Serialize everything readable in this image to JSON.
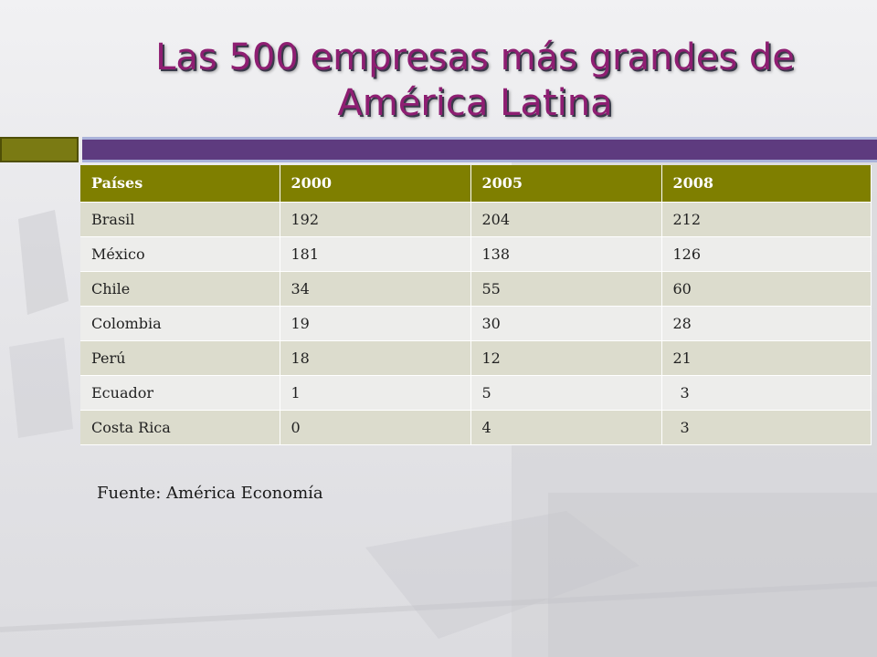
{
  "slide": {
    "title_line1": "Las 500 empresas más grandes de",
    "title_line2": "América Latina",
    "title_color": "#8e1e72",
    "accent_olive": "#7f7f00",
    "accent_purple": "#5e3b7f"
  },
  "table": {
    "headers": [
      "Países",
      "2000",
      "2005",
      "2008"
    ],
    "rows": [
      [
        "Brasil",
        "192",
        "204",
        "212"
      ],
      [
        "México",
        "181",
        "138",
        "126"
      ],
      [
        "Chile",
        "34",
        "55",
        "60"
      ],
      [
        "Colombia",
        "19",
        "30",
        "28"
      ],
      [
        "Perú",
        "18",
        "12",
        "21"
      ],
      [
        "Ecuador",
        "1",
        "5",
        "3"
      ],
      [
        "Costa Rica",
        "0",
        "4",
        "3"
      ]
    ]
  },
  "source": "Fuente: América Economía"
}
